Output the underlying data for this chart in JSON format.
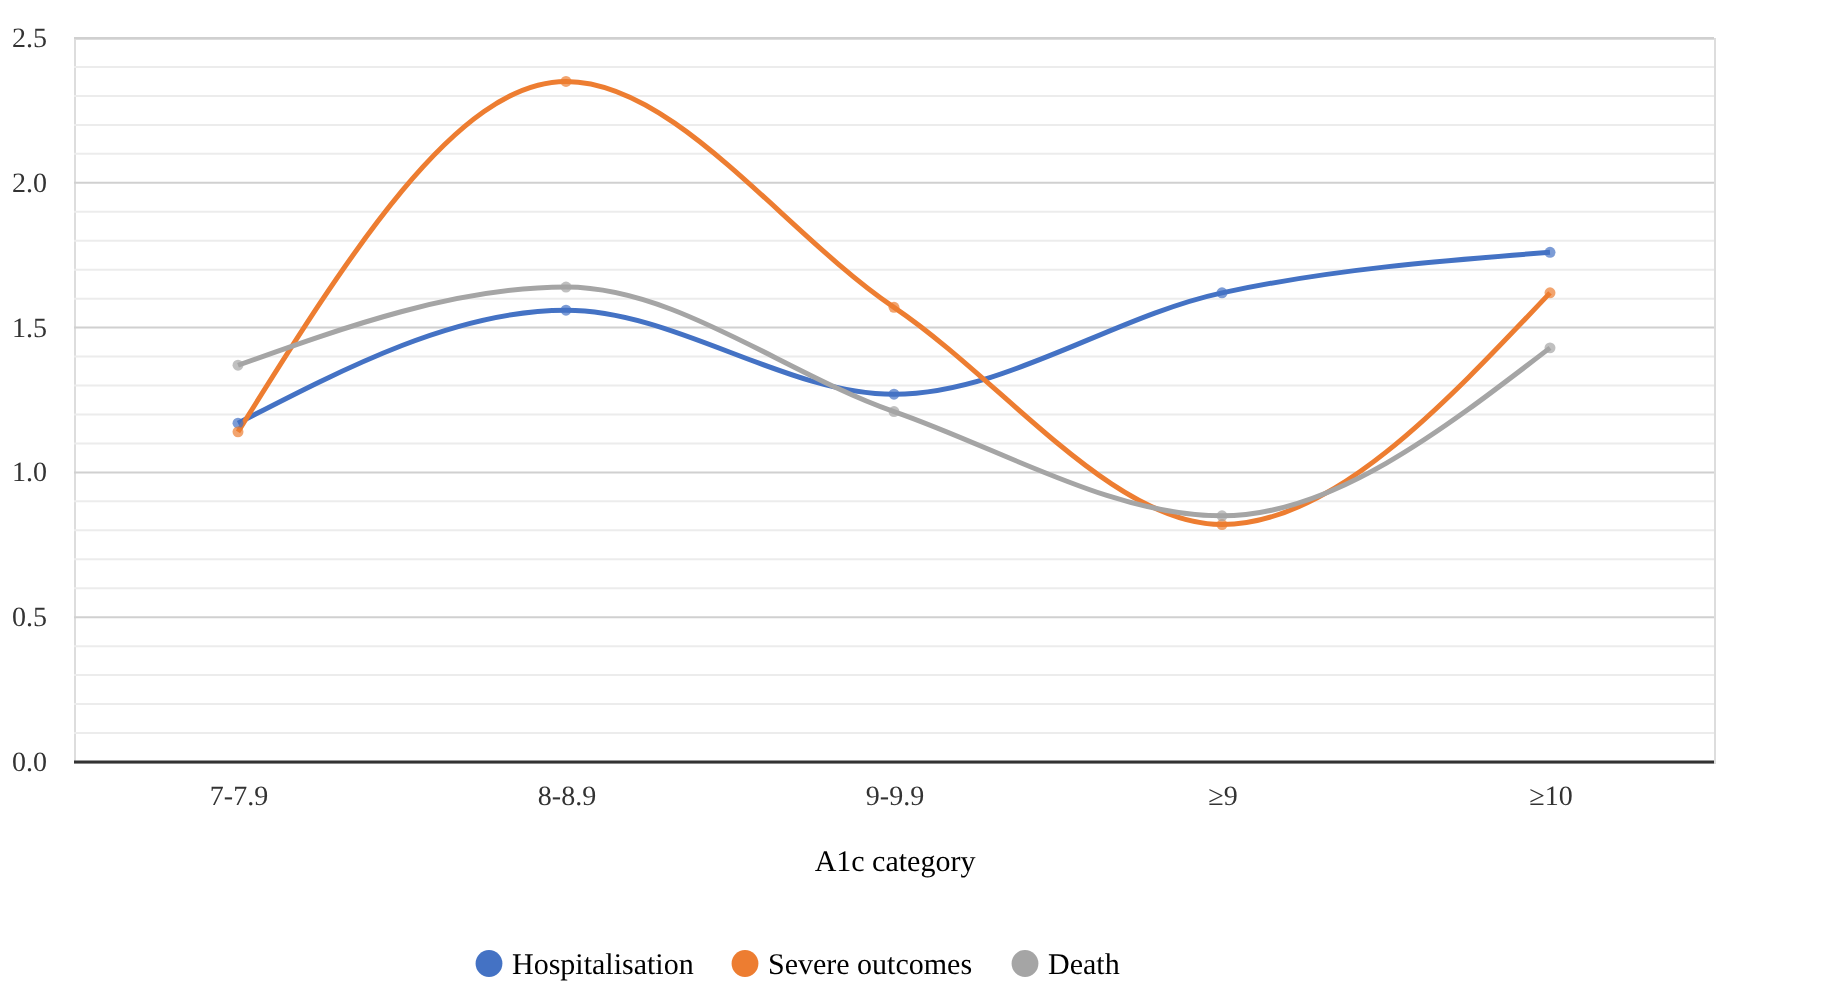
{
  "chart_data": {
    "type": "line",
    "xlabel": "A1c category",
    "categories": [
      "7-7.9",
      "8-8.9",
      "9-9.9",
      "≥9",
      "≥10"
    ],
    "series": [
      {
        "name": "Hospitalisation",
        "color": "#4472c4",
        "values": [
          1.17,
          1.56,
          1.27,
          1.62,
          1.76
        ]
      },
      {
        "name": "Severe outcomes",
        "color": "#ed7d31",
        "values": [
          1.14,
          2.35,
          1.57,
          0.82,
          1.62
        ]
      },
      {
        "name": "Death",
        "color": "#a5a5a5",
        "values": [
          1.37,
          1.64,
          1.21,
          0.85,
          1.43
        ]
      }
    ],
    "ylim": [
      0,
      2.5
    ],
    "yticks": [
      {
        "value": 0,
        "label": "0.0"
      },
      {
        "value": 0.1,
        "label": null
      },
      {
        "value": 0.2,
        "label": null
      },
      {
        "value": 0.3,
        "label": null
      },
      {
        "value": 0.4,
        "label": null
      },
      {
        "value": 0.5,
        "label": "0.5"
      },
      {
        "value": 0.6,
        "label": null
      },
      {
        "value": 0.7,
        "label": null
      },
      {
        "value": 0.8,
        "label": null
      },
      {
        "value": 0.9,
        "label": null
      },
      {
        "value": 1.0,
        "label": "1.0"
      },
      {
        "value": 1.1,
        "label": null
      },
      {
        "value": 1.2,
        "label": null
      },
      {
        "value": 1.3,
        "label": null
      },
      {
        "value": 1.4,
        "label": null
      },
      {
        "value": 1.5,
        "label": "1.5"
      },
      {
        "value": 1.6,
        "label": null
      },
      {
        "value": 1.7,
        "label": null
      },
      {
        "value": 1.8,
        "label": null
      },
      {
        "value": 1.9,
        "label": null
      },
      {
        "value": 2.0,
        "label": "2.0"
      },
      {
        "value": 2.1,
        "label": null
      },
      {
        "value": 2.2,
        "label": null
      },
      {
        "value": 2.3,
        "label": null
      },
      {
        "value": 2.4,
        "label": null
      },
      {
        "value": 2.5,
        "label": "2.5"
      }
    ],
    "grid": "y",
    "legend": "bottom",
    "marker": "circle",
    "line_style": "solid"
  }
}
